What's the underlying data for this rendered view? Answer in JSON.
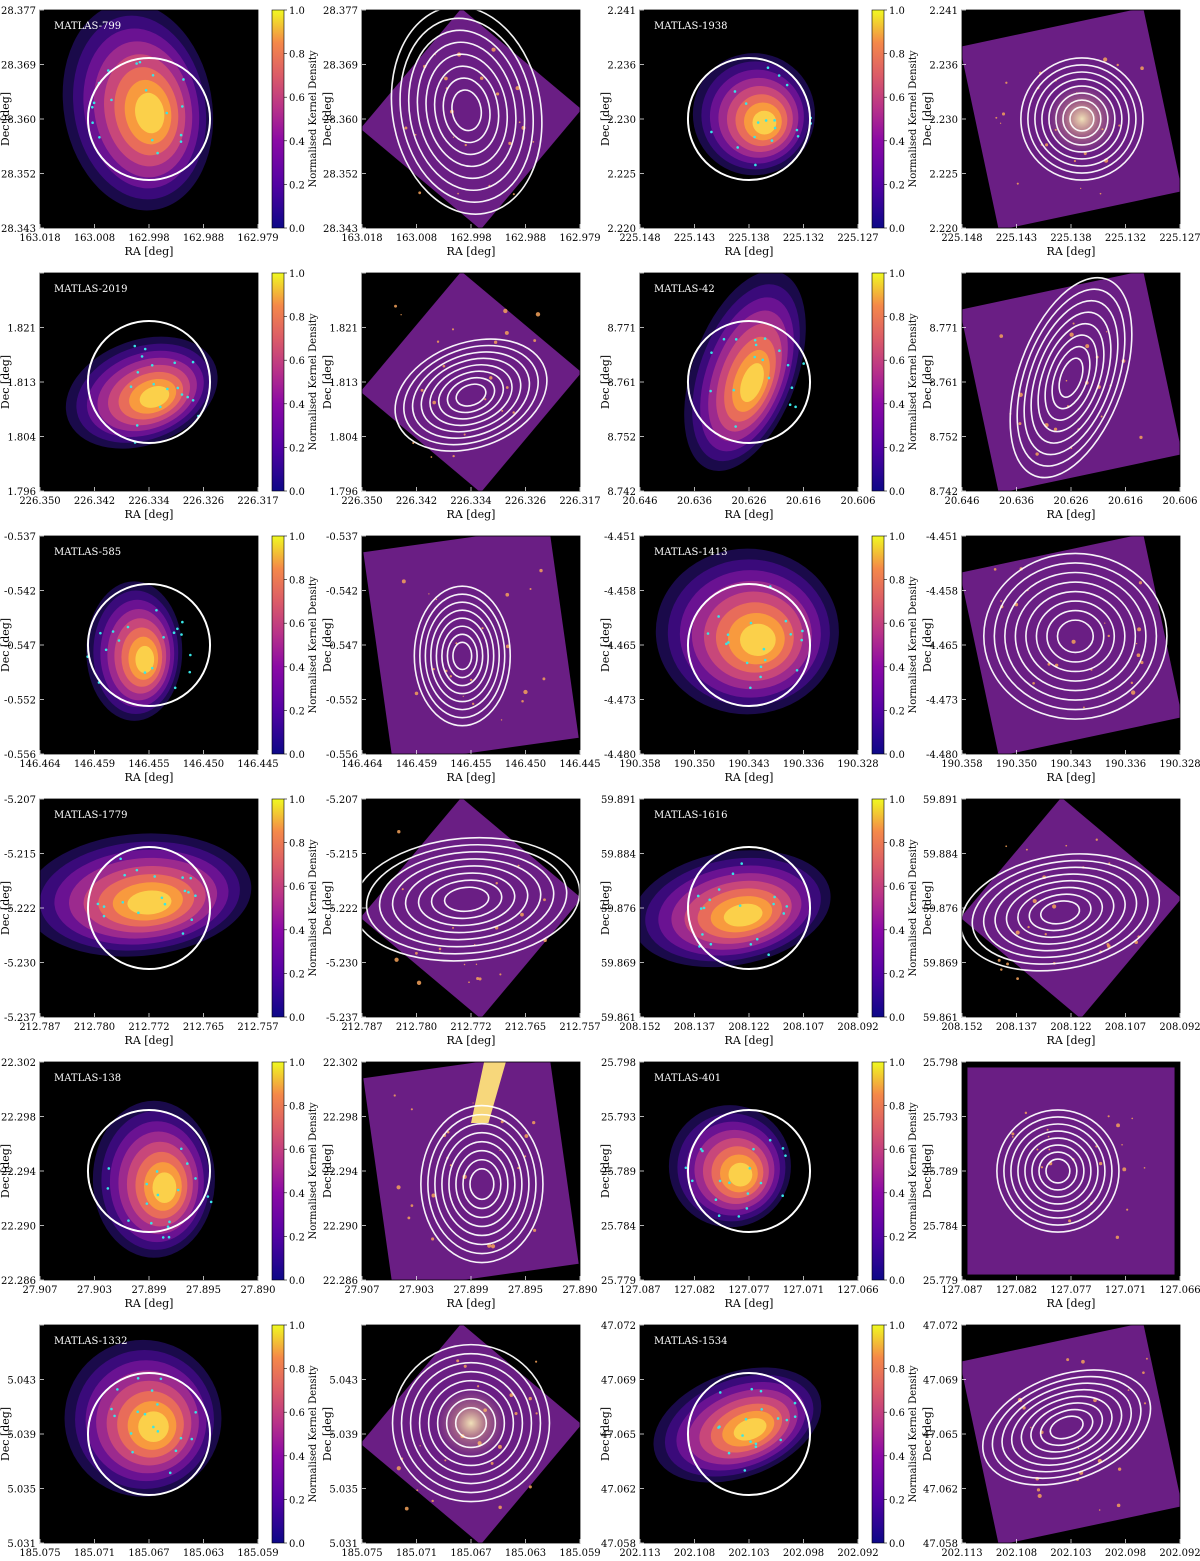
{
  "figure": {
    "xlabel": "RA [deg]",
    "ylabel": "Dec [deg]",
    "colorbar_label": "Normalised Kernel Density",
    "colorbar_ticks": [
      "0.0",
      "0.2",
      "0.4",
      "0.6",
      "0.8",
      "1.0"
    ],
    "colors": {
      "background": "#000000",
      "image": "#6a1e84",
      "contour": "#ffffff",
      "points": "#38e6e6",
      "aperture": "#ffffff"
    }
  },
  "chart_data": [
    {
      "type": "heatmap",
      "label": "MATLAS-799",
      "xticks": [
        "163.018",
        "163.008",
        "162.998",
        "162.988",
        "162.979"
      ],
      "yticks": [
        "28.377",
        "28.369",
        "28.360",
        "28.352",
        "28.343"
      ]
    },
    {
      "type": "heatmap",
      "label": "MATLAS-1938",
      "xticks": [
        "225.148",
        "225.143",
        "225.138",
        "225.132",
        "225.127"
      ],
      "yticks": [
        "2.241",
        "2.236",
        "2.230",
        "2.225",
        "2.220"
      ]
    },
    {
      "type": "heatmap",
      "label": "MATLAS-2019",
      "xticks": [
        "226.350",
        "226.342",
        "226.334",
        "226.326",
        "226.317"
      ],
      "yticks": [
        "",
        "1.821",
        "1.813",
        "1.804",
        "1.796"
      ]
    },
    {
      "type": "heatmap",
      "label": "MATLAS-42",
      "xticks": [
        "20.646",
        "20.636",
        "20.626",
        "20.616",
        "20.606"
      ],
      "yticks": [
        "",
        "8.771",
        "8.761",
        "8.752",
        "8.742"
      ]
    },
    {
      "type": "heatmap",
      "label": "MATLAS-585",
      "xticks": [
        "146.464",
        "146.459",
        "146.455",
        "146.450",
        "146.445"
      ],
      "yticks": [
        "-0.537",
        "-0.542",
        "-0.547",
        "-0.552",
        "-0.556"
      ]
    },
    {
      "type": "heatmap",
      "label": "MATLAS-1413",
      "xticks": [
        "190.358",
        "190.350",
        "190.343",
        "190.336",
        "190.328"
      ],
      "yticks": [
        "-4.451",
        "-4.458",
        "-4.465",
        "-4.473",
        "-4.480"
      ]
    },
    {
      "type": "heatmap",
      "label": "MATLAS-1779",
      "xticks": [
        "212.787",
        "212.780",
        "212.772",
        "212.765",
        "212.757"
      ],
      "yticks": [
        "-5.207",
        "-5.215",
        "-5.222",
        "-5.230",
        "-5.237"
      ]
    },
    {
      "type": "heatmap",
      "label": "MATLAS-1616",
      "xticks": [
        "208.152",
        "208.137",
        "208.122",
        "208.107",
        "208.092"
      ],
      "yticks": [
        "59.891",
        "59.884",
        "59.876",
        "59.869",
        "59.861"
      ]
    },
    {
      "type": "heatmap",
      "label": "MATLAS-138",
      "xticks": [
        "27.907",
        "27.903",
        "27.899",
        "27.895",
        "27.890"
      ],
      "yticks": [
        "22.302",
        "22.298",
        "22.294",
        "22.290",
        "22.286"
      ]
    },
    {
      "type": "heatmap",
      "label": "MATLAS-401",
      "xticks": [
        "127.087",
        "127.082",
        "127.077",
        "127.071",
        "127.066"
      ],
      "yticks": [
        "25.798",
        "25.793",
        "25.789",
        "25.784",
        "25.779"
      ]
    },
    {
      "type": "heatmap",
      "label": "MATLAS-1332",
      "xticks": [
        "185.075",
        "185.071",
        "185.067",
        "185.063",
        "185.059"
      ],
      "yticks": [
        "",
        "5.043",
        "5.039",
        "5.035",
        "5.031"
      ]
    },
    {
      "type": "heatmap",
      "label": "MATLAS-1534",
      "xticks": [
        "202.113",
        "202.108",
        "202.103",
        "202.098",
        "202.092"
      ],
      "yticks": [
        "47.072",
        "47.069",
        "47.065",
        "47.062",
        "47.058"
      ]
    }
  ]
}
